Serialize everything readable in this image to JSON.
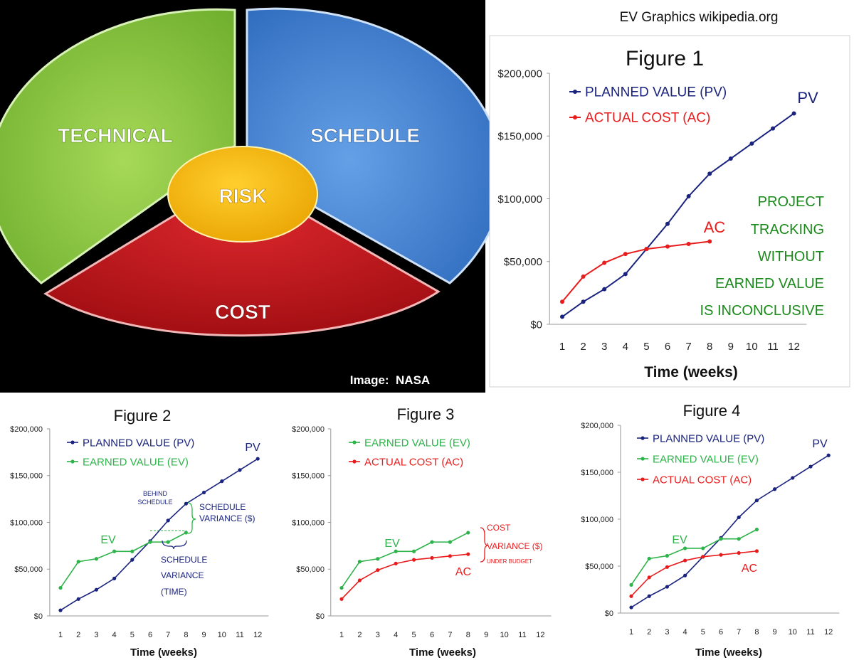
{
  "header": {
    "credit": "EV Graphics wikipedia.org"
  },
  "pie": {
    "segments": [
      "TECHNICAL",
      "SCHEDULE",
      "COST"
    ],
    "center": "RISK",
    "credit": "Image:  NASA",
    "colors": {
      "technical": "#8cc63f",
      "schedule": "#4a86d0",
      "cost": "#c4161c",
      "risk": "#f5b800",
      "background": "#000000"
    }
  },
  "colors": {
    "pv": "#1a237e",
    "ac": "#e81c1c",
    "ev": "#2db34a",
    "note": "#1a8a1a"
  },
  "chart_data": [
    {
      "type": "line",
      "title": "Figure 1",
      "xlabel": "Time (weeks)",
      "ylabel": "",
      "x_ticks": [
        "1",
        "2",
        "3",
        "4",
        "5",
        "6",
        "7",
        "8",
        "9",
        "10",
        "11",
        "12"
      ],
      "y_ticks": [
        "$0",
        "$50,000",
        "$100,000",
        "$150,000",
        "$200,000"
      ],
      "ylim": [
        0,
        200000
      ],
      "legend": [
        "PLANNED VALUE (PV)",
        "ACTUAL COST (AC)"
      ],
      "annotations": [
        "PV",
        "AC",
        "PROJECT",
        "TRACKING",
        "WITHOUT",
        "EARNED VALUE",
        "IS INCONCLUSIVE"
      ],
      "series": [
        {
          "name": "PLANNED VALUE (PV)",
          "x": [
            1,
            2,
            3,
            4,
            5,
            6,
            7,
            8,
            9,
            10,
            11,
            12
          ],
          "values": [
            6000,
            18000,
            28000,
            40000,
            60000,
            80000,
            102000,
            120000,
            132000,
            144000,
            156000,
            168000
          ]
        },
        {
          "name": "ACTUAL COST (AC)",
          "x": [
            1,
            2,
            3,
            4,
            5,
            6,
            7,
            8
          ],
          "values": [
            18000,
            38000,
            49000,
            56000,
            60000,
            62000,
            64000,
            66000
          ]
        }
      ]
    },
    {
      "type": "line",
      "title": "Figure 2",
      "xlabel": "Time (weeks)",
      "ylabel": "",
      "x_ticks": [
        "1",
        "2",
        "3",
        "4",
        "5",
        "6",
        "7",
        "8",
        "9",
        "10",
        "11",
        "12"
      ],
      "y_ticks": [
        "$0",
        "$50,000",
        "$100,000",
        "$150,000",
        "$200,000"
      ],
      "ylim": [
        0,
        200000
      ],
      "legend": [
        "PLANNED VALUE (PV)",
        "EARNED VALUE (EV)"
      ],
      "annotations": [
        "PV",
        "EV",
        "BEHIND",
        "SCHEDULE",
        "SCHEDULE",
        "VARIANCE ($)",
        "SCHEDULE",
        "VARIANCE",
        "(TIME)"
      ],
      "series": [
        {
          "name": "PLANNED VALUE (PV)",
          "x": [
            1,
            2,
            3,
            4,
            5,
            6,
            7,
            8,
            9,
            10,
            11,
            12
          ],
          "values": [
            6000,
            18000,
            28000,
            40000,
            60000,
            80000,
            102000,
            120000,
            132000,
            144000,
            156000,
            168000
          ]
        },
        {
          "name": "EARNED VALUE (EV)",
          "x": [
            1,
            2,
            3,
            4,
            5,
            6,
            7,
            8
          ],
          "values": [
            30000,
            58000,
            61000,
            69000,
            69000,
            79000,
            79000,
            89000
          ]
        }
      ]
    },
    {
      "type": "line",
      "title": "Figure 3",
      "xlabel": "Time (weeks)",
      "ylabel": "",
      "x_ticks": [
        "1",
        "2",
        "3",
        "4",
        "5",
        "6",
        "7",
        "8",
        "9",
        "10",
        "11",
        "12"
      ],
      "y_ticks": [
        "$0",
        "$50,000",
        "$100,000",
        "$150,000",
        "$200,000"
      ],
      "ylim": [
        0,
        200000
      ],
      "legend": [
        "EARNED VALUE (EV)",
        "ACTUAL COST (AC)"
      ],
      "annotations": [
        "EV",
        "AC",
        "COST",
        "VARIANCE ($)",
        "UNDER BUDGET"
      ],
      "series": [
        {
          "name": "EARNED VALUE (EV)",
          "x": [
            1,
            2,
            3,
            4,
            5,
            6,
            7,
            8
          ],
          "values": [
            30000,
            58000,
            61000,
            69000,
            69000,
            79000,
            79000,
            89000
          ]
        },
        {
          "name": "ACTUAL COST (AC)",
          "x": [
            1,
            2,
            3,
            4,
            5,
            6,
            7,
            8
          ],
          "values": [
            18000,
            38000,
            49000,
            56000,
            60000,
            62000,
            64000,
            66000
          ]
        }
      ]
    },
    {
      "type": "line",
      "title": "Figure 4",
      "xlabel": "Time (weeks)",
      "ylabel": "",
      "x_ticks": [
        "1",
        "2",
        "3",
        "4",
        "5",
        "6",
        "7",
        "8",
        "9",
        "10",
        "11",
        "12"
      ],
      "y_ticks": [
        "$0",
        "$50,000",
        "$100,000",
        "$150,000",
        "$200,000"
      ],
      "ylim": [
        0,
        200000
      ],
      "legend": [
        "PLANNED VALUE (PV)",
        "EARNED VALUE (EV)",
        "ACTUAL COST (AC)"
      ],
      "annotations": [
        "PV",
        "EV",
        "AC"
      ],
      "series": [
        {
          "name": "PLANNED VALUE (PV)",
          "x": [
            1,
            2,
            3,
            4,
            5,
            6,
            7,
            8,
            9,
            10,
            11,
            12
          ],
          "values": [
            6000,
            18000,
            28000,
            40000,
            60000,
            80000,
            102000,
            120000,
            132000,
            144000,
            156000,
            168000
          ]
        },
        {
          "name": "EARNED VALUE (EV)",
          "x": [
            1,
            2,
            3,
            4,
            5,
            6,
            7,
            8
          ],
          "values": [
            30000,
            58000,
            61000,
            69000,
            69000,
            79000,
            79000,
            89000
          ]
        },
        {
          "name": "ACTUAL COST (AC)",
          "x": [
            1,
            2,
            3,
            4,
            5,
            6,
            7,
            8
          ],
          "values": [
            18000,
            38000,
            49000,
            56000,
            60000,
            62000,
            64000,
            66000
          ]
        }
      ]
    }
  ]
}
